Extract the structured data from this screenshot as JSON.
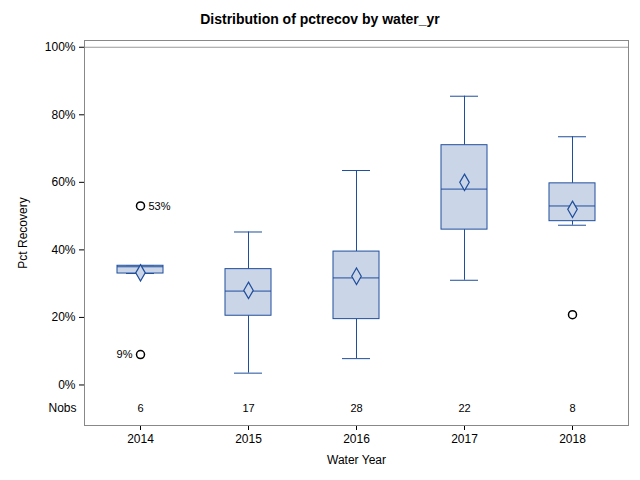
{
  "chart_data": {
    "type": "box",
    "title": "Distribution of pctrecov by water_yr",
    "x_label": "Water Year",
    "y_label": "Pct Recovery",
    "categories": [
      "2014",
      "2015",
      "2016",
      "2017",
      "2018"
    ],
    "boxes": [
      {
        "whisker_low": 33,
        "q1": 33,
        "median": 35,
        "q3": 35.3,
        "whisker_high": 35.3,
        "mean": 33.2,
        "outliers": [
          53,
          9
        ],
        "outlier_labels": [
          "53%",
          "9%"
        ]
      },
      {
        "whisker_low": 3.5,
        "q1": 20.5,
        "median": 27.8,
        "q3": 34.3,
        "whisker_high": 45.3,
        "mean": 28,
        "outliers": [],
        "outlier_labels": []
      },
      {
        "whisker_low": 7.8,
        "q1": 19.5,
        "median": 31.7,
        "q3": 39.5,
        "whisker_high": 63.5,
        "mean": 32.2,
        "outliers": [],
        "outlier_labels": []
      },
      {
        "whisker_low": 31,
        "q1": 46,
        "median": 58,
        "q3": 71,
        "whisker_high": 85.5,
        "mean": 60,
        "outliers": [],
        "outlier_labels": []
      },
      {
        "whisker_low": 47.3,
        "q1": 48.5,
        "median": 53,
        "q3": 59.7,
        "whisker_high": 73.5,
        "mean": 52,
        "outliers": [
          20.8
        ],
        "outlier_labels": [
          null
        ]
      }
    ],
    "nobs_label": "Nobs",
    "nobs": [
      6,
      17,
      28,
      22,
      8
    ],
    "reference_line": 100,
    "ylim": [
      -12,
      102
    ],
    "yticks": [
      {
        "value": 0,
        "label": "0%"
      },
      {
        "value": 20,
        "label": "20%"
      },
      {
        "value": 40,
        "label": "40%"
      },
      {
        "value": 60,
        "label": "60%"
      },
      {
        "value": 80,
        "label": "80%"
      },
      {
        "value": 100,
        "label": "100%"
      }
    ],
    "grid": false,
    "marker": "diamond",
    "color": "#cbd5e8"
  }
}
